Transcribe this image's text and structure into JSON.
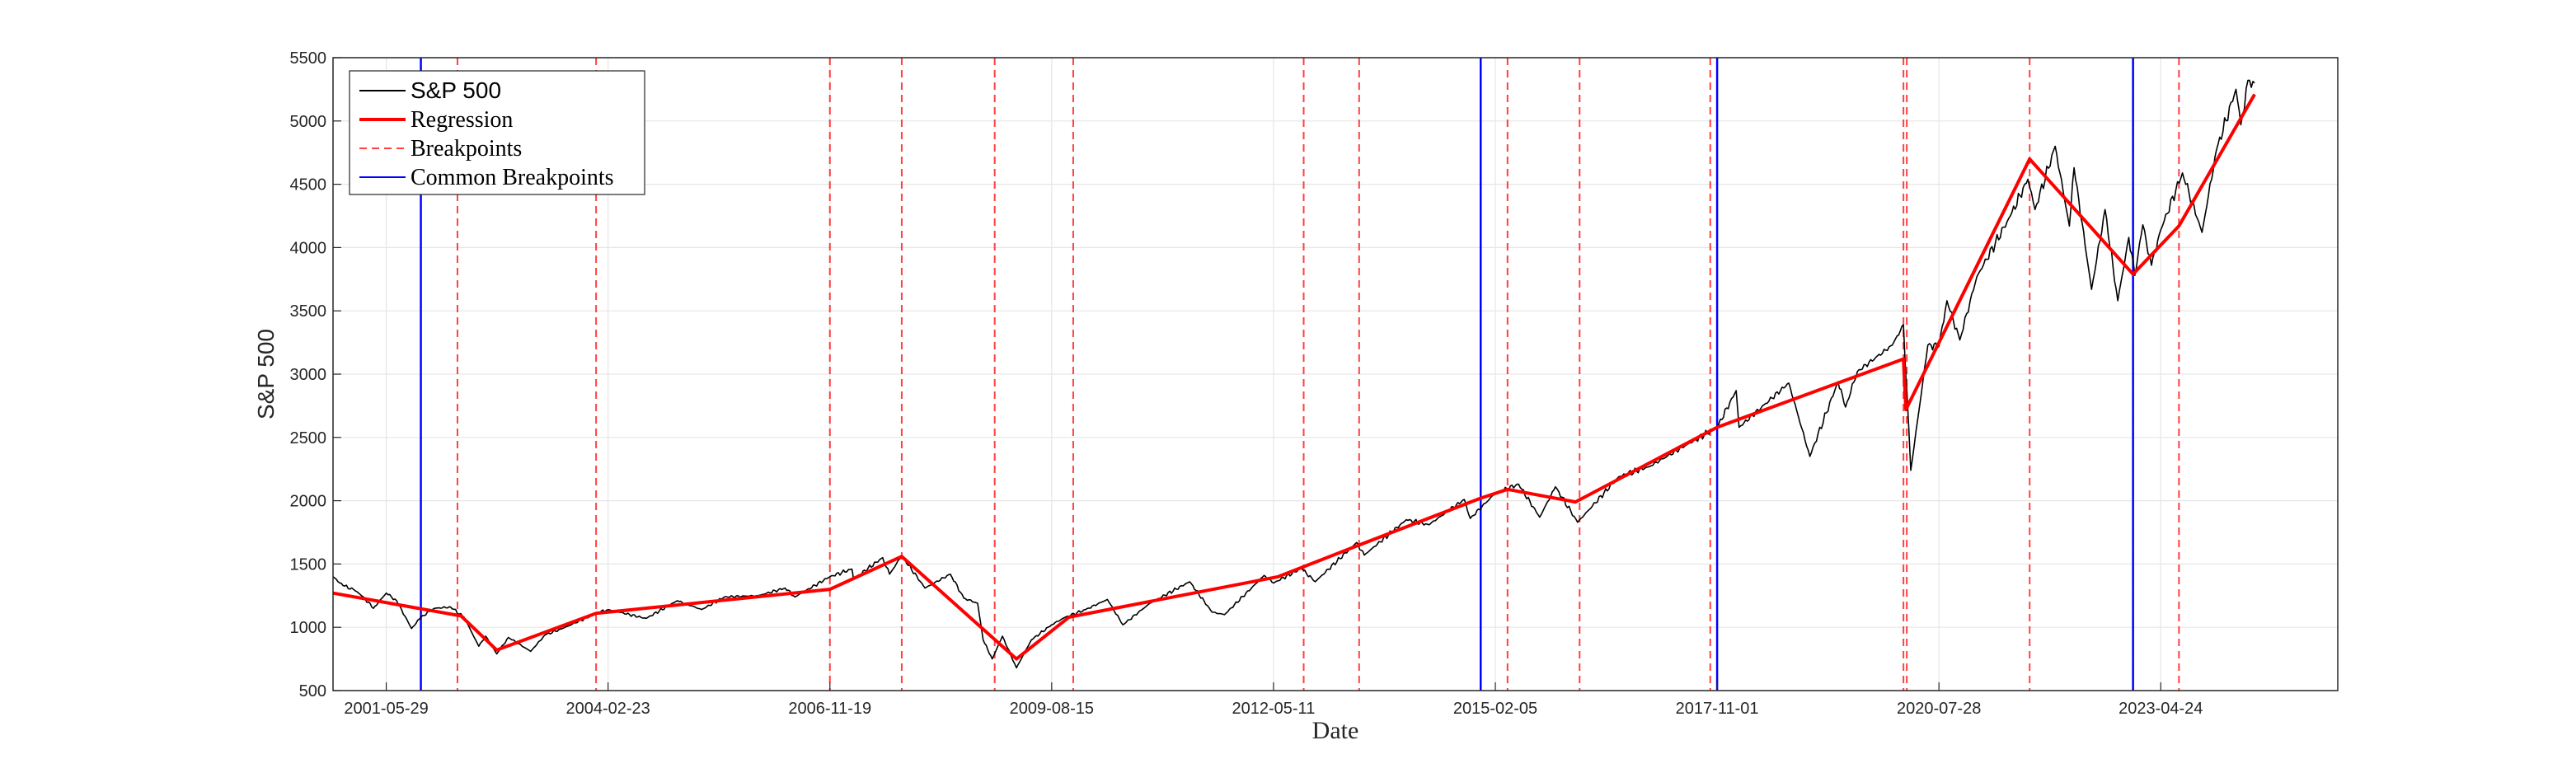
{
  "chart_data": {
    "type": "line",
    "title": "",
    "xlabel": "Date",
    "ylabel": "S&P 500",
    "ylim": [
      500,
      5500
    ],
    "xlim": [
      "2000-10-01",
      "2025-06-30"
    ],
    "yticks": [
      500,
      1000,
      1500,
      2000,
      2500,
      3000,
      3500,
      4000,
      4500,
      5000,
      5500
    ],
    "xticks": [
      "2001-05-29",
      "2004-02-23",
      "2006-11-19",
      "2009-08-15",
      "2012-05-11",
      "2015-02-05",
      "2017-11-01",
      "2020-07-28",
      "2023-04-24"
    ],
    "grid": true,
    "legend": {
      "location": "top-left",
      "entries": [
        "S&P 500",
        "Regression",
        "Breakpoints",
        "Common Breakpoints"
      ]
    },
    "colors": {
      "price": "#000000",
      "regression": "#ff0000",
      "breakpoints": "#ff0000",
      "common": "#0000ff"
    },
    "series": [
      {
        "name": "S&P 500",
        "kind": "price",
        "points": [
          [
            "2000-10-01",
            1400
          ],
          [
            "2000-11-15",
            1330
          ],
          [
            "2001-01-01",
            1300
          ],
          [
            "2001-02-15",
            1240
          ],
          [
            "2001-04-01",
            1150
          ],
          [
            "2001-05-29",
            1270
          ],
          [
            "2001-07-15",
            1210
          ],
          [
            "2001-09-20",
            990
          ],
          [
            "2001-11-01",
            1080
          ],
          [
            "2002-01-01",
            1150
          ],
          [
            "2002-03-15",
            1160
          ],
          [
            "2002-05-15",
            1080
          ],
          [
            "2002-07-20",
            850
          ],
          [
            "2002-08-20",
            930
          ],
          [
            "2002-10-09",
            790
          ],
          [
            "2002-12-01",
            920
          ],
          [
            "2003-03-11",
            810
          ],
          [
            "2003-05-15",
            940
          ],
          [
            "2003-08-01",
            990
          ],
          [
            "2003-12-31",
            1110
          ],
          [
            "2004-02-23",
            1140
          ],
          [
            "2004-08-12",
            1070
          ],
          [
            "2004-12-31",
            1210
          ],
          [
            "2005-04-20",
            1140
          ],
          [
            "2005-08-01",
            1240
          ],
          [
            "2005-12-31",
            1250
          ],
          [
            "2006-05-01",
            1310
          ],
          [
            "2006-06-15",
            1240
          ],
          [
            "2006-11-19",
            1400
          ],
          [
            "2007-02-26",
            1460
          ],
          [
            "2007-03-05",
            1380
          ],
          [
            "2007-07-15",
            1550
          ],
          [
            "2007-08-15",
            1420
          ],
          [
            "2007-10-09",
            1565
          ],
          [
            "2008-01-22",
            1310
          ],
          [
            "2008-05-15",
            1420
          ],
          [
            "2008-07-15",
            1230
          ],
          [
            "2008-09-15",
            1190
          ],
          [
            "2008-10-10",
            900
          ],
          [
            "2008-11-20",
            750
          ],
          [
            "2009-01-05",
            930
          ],
          [
            "2009-03-09",
            680
          ],
          [
            "2009-05-15",
            900
          ],
          [
            "2009-08-15",
            1020
          ],
          [
            "2009-10-15",
            1080
          ],
          [
            "2010-01-15",
            1140
          ],
          [
            "2010-04-23",
            1220
          ],
          [
            "2010-07-02",
            1020
          ],
          [
            "2010-11-01",
            1190
          ],
          [
            "2011-04-29",
            1360
          ],
          [
            "2011-08-08",
            1120
          ],
          [
            "2011-10-03",
            1100
          ],
          [
            "2012-03-30",
            1410
          ],
          [
            "2012-05-11",
            1350
          ],
          [
            "2012-09-14",
            1465
          ],
          [
            "2012-11-15",
            1360
          ],
          [
            "2013-05-21",
            1670
          ],
          [
            "2013-06-24",
            1570
          ],
          [
            "2013-12-31",
            1850
          ],
          [
            "2014-04-11",
            1810
          ],
          [
            "2014-09-18",
            2010
          ],
          [
            "2014-10-15",
            1860
          ],
          [
            "2015-02-05",
            2060
          ],
          [
            "2015-05-21",
            2130
          ],
          [
            "2015-08-24",
            1870
          ],
          [
            "2015-11-03",
            2110
          ],
          [
            "2016-02-11",
            1830
          ],
          [
            "2016-08-15",
            2190
          ],
          [
            "2016-12-31",
            2270
          ],
          [
            "2017-06-15",
            2440
          ],
          [
            "2017-11-01",
            2580
          ],
          [
            "2018-01-26",
            2870
          ],
          [
            "2018-02-08",
            2580
          ],
          [
            "2018-09-20",
            2930
          ],
          [
            "2018-12-24",
            2350
          ],
          [
            "2019-04-30",
            2940
          ],
          [
            "2019-06-03",
            2740
          ],
          [
            "2019-07-26",
            3020
          ],
          [
            "2019-12-31",
            3230
          ],
          [
            "2020-02-19",
            3390
          ],
          [
            "2020-03-23",
            2240
          ],
          [
            "2020-06-08",
            3230
          ],
          [
            "2020-07-28",
            3220
          ],
          [
            "2020-09-02",
            3580
          ],
          [
            "2020-10-30",
            3270
          ],
          [
            "2021-01-15",
            3770
          ],
          [
            "2021-06-15",
            4250
          ],
          [
            "2021-09-02",
            4540
          ],
          [
            "2021-10-04",
            4300
          ],
          [
            "2022-01-03",
            4800
          ],
          [
            "2022-03-08",
            4170
          ],
          [
            "2022-03-29",
            4630
          ],
          [
            "2022-06-16",
            3670
          ],
          [
            "2022-08-16",
            4300
          ],
          [
            "2022-10-12",
            3580
          ],
          [
            "2022-12-01",
            4080
          ],
          [
            "2022-12-28",
            3780
          ],
          [
            "2023-02-02",
            4180
          ],
          [
            "2023-03-13",
            3860
          ],
          [
            "2023-04-24",
            4140
          ],
          [
            "2023-07-31",
            4590
          ],
          [
            "2023-10-27",
            4120
          ],
          [
            "2023-12-31",
            4770
          ],
          [
            "2024-03-28",
            5250
          ],
          [
            "2024-04-19",
            4970
          ],
          [
            "2024-05-21",
            5320
          ],
          [
            "2024-06-20",
            5300
          ]
        ]
      },
      {
        "name": "Regression",
        "kind": "regression",
        "points": [
          [
            "2000-10-01",
            1270
          ],
          [
            "2002-05-01",
            1090
          ],
          [
            "2002-10-09",
            820
          ],
          [
            "2003-12-31",
            1110
          ],
          [
            "2006-11-19",
            1300
          ],
          [
            "2007-10-09",
            1560
          ],
          [
            "2009-03-09",
            750
          ],
          [
            "2009-11-01",
            1080
          ],
          [
            "2012-06-01",
            1400
          ],
          [
            "2013-06-01",
            1650
          ],
          [
            "2014-12-01",
            2020
          ],
          [
            "2015-04-01",
            2090
          ],
          [
            "2016-02-01",
            1990
          ],
          [
            "2017-11-01",
            2580
          ],
          [
            "2020-02-19",
            3120
          ],
          [
            "2020-03-01",
            2720
          ],
          [
            "2021-09-10",
            4700
          ],
          [
            "2022-12-20",
            3790
          ],
          [
            "2023-07-15",
            4170
          ],
          [
            "2024-06-20",
            5210
          ]
        ]
      }
    ],
    "breakpoints": [
      "2002-04-15",
      "2003-12-31",
      "2006-11-19",
      "2007-10-09",
      "2008-12-01",
      "2009-11-20",
      "2012-09-24",
      "2013-06-01",
      "2015-04-01",
      "2016-02-20",
      "2017-10-01",
      "2020-02-19",
      "2020-03-05",
      "2021-09-10",
      "2022-12-20",
      "2023-07-15"
    ],
    "common_breakpoints": [
      "2001-11-01",
      "2014-12-01",
      "2017-11-01",
      "2022-12-20"
    ]
  }
}
